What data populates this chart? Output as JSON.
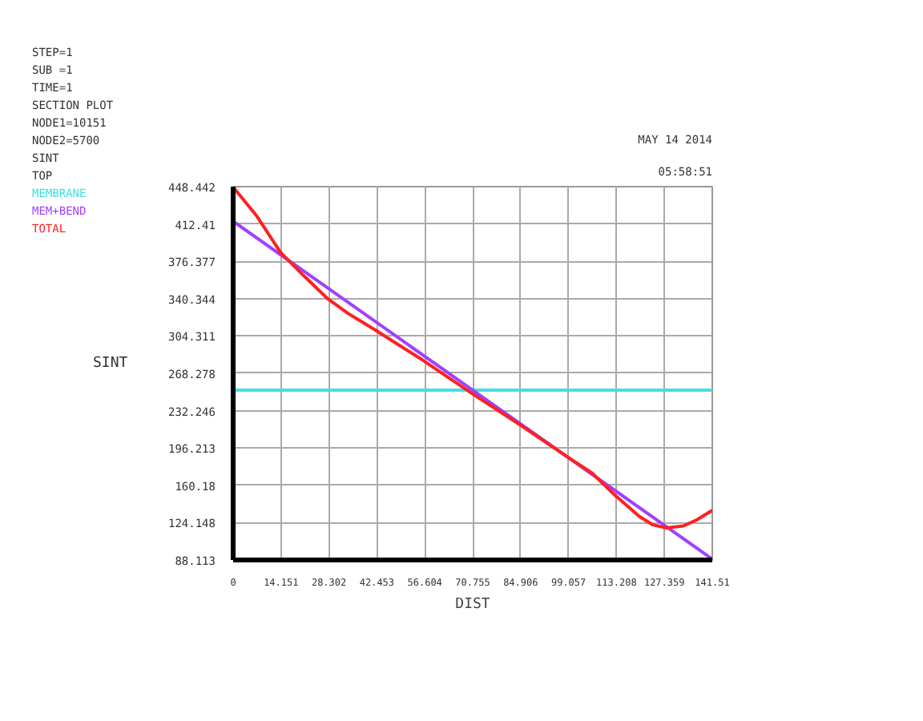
{
  "chart_data": {
    "type": "line",
    "xlabel": "DIST",
    "ylabel": "SINT",
    "annotations": [
      "STEP=1",
      "SUB =1",
      "TIME=1",
      "SECTION PLOT",
      "NODE1=10151",
      "NODE2=5700",
      "SINT",
      "TOP",
      "MAY 14 2014",
      "05:58:51"
    ],
    "series": [
      {
        "name": "MEMBRANE",
        "color": "#40e0e0",
        "x": [
          0,
          141.51
        ],
        "values": [
          252,
          252
        ]
      },
      {
        "name": "MEM+BEND",
        "color": "#a040ff",
        "x": [
          0,
          141.51
        ],
        "values": [
          415,
          89
        ]
      },
      {
        "name": "TOTAL",
        "color": "#ff2020",
        "x": [
          0,
          7,
          14,
          21,
          28,
          34,
          42,
          56,
          70,
          85,
          99,
          106,
          113,
          120,
          124,
          128,
          133,
          137,
          141.51
        ],
        "values": [
          448,
          420,
          385,
          362,
          340,
          326,
          310,
          281,
          250,
          218,
          187,
          172,
          150,
          130,
          122,
          119,
          121,
          127,
          136
        ]
      }
    ],
    "xlim": [
      0,
      141.51
    ],
    "xticks": [
      0,
      14.151,
      28.302,
      42.453,
      56.604,
      70.755,
      84.906,
      99.057,
      113.208,
      127.359,
      141.51
    ],
    "ylim": [
      88.113,
      448.442
    ],
    "yticks": [
      88.113,
      124.148,
      160.18,
      196.213,
      232.246,
      268.278,
      304.311,
      340.344,
      376.377,
      412.41,
      448.442
    ],
    "grid": true,
    "marker": "none",
    "line_style": "solid"
  }
}
